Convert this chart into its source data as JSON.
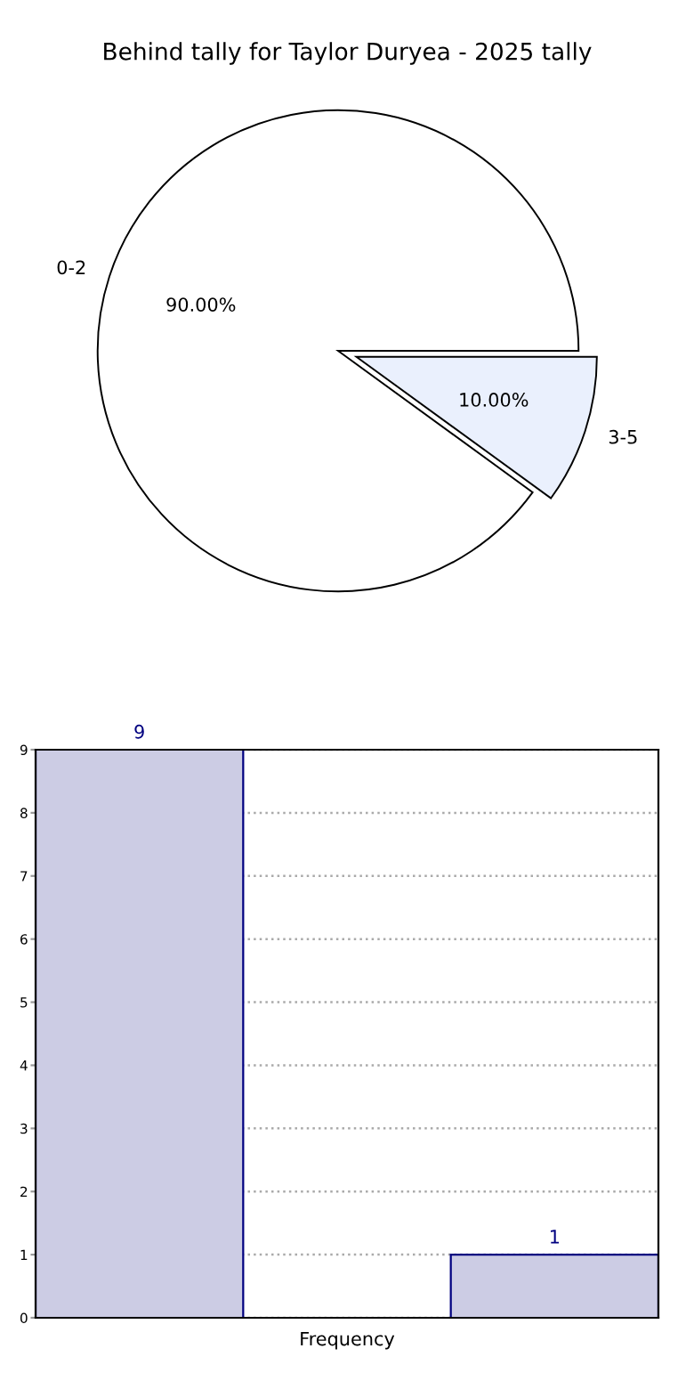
{
  "chart_data": [
    {
      "type": "pie",
      "title": "Behind tally for Taylor Duryea - 2025 tally",
      "categories": [
        "0-2",
        "3-5"
      ],
      "values": [
        90,
        10
      ],
      "colors": [
        "#ffffff",
        "#eaf0fd"
      ],
      "value_labels": [
        "90.00%",
        "10.00%"
      ]
    },
    {
      "type": "bar",
      "categories": [
        null,
        null,
        null
      ],
      "values": [
        9,
        0,
        1
      ],
      "color": "#ccccE4",
      "value_labels": [
        "9",
        null,
        "1"
      ],
      "xlabel": "Frequency",
      "ylim": [
        0,
        9
      ],
      "yticks": [
        0,
        1,
        2,
        3,
        4,
        5,
        6,
        7,
        8,
        9
      ],
      "grid": "y"
    }
  ]
}
